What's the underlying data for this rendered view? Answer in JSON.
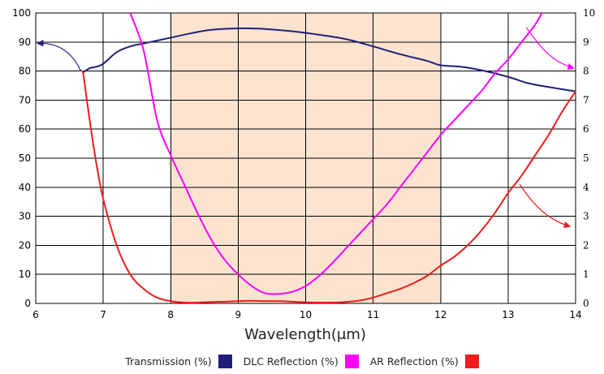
{
  "chart_data": {
    "type": "line",
    "title": "",
    "xlabel": "Wavelength(μm)",
    "ylabel": "",
    "xlim": [
      6,
      14
    ],
    "ylim": [
      0,
      100
    ],
    "y2lim": [
      0,
      10
    ],
    "x_ticks": [
      "6",
      "7",
      "8",
      "9",
      "10",
      "11",
      "12",
      "13",
      "14"
    ],
    "y_ticks_left": [
      "0",
      "10",
      "20",
      "30",
      "40",
      "50",
      "60",
      "70",
      "80",
      "90",
      "100"
    ],
    "y_ticks_right": [
      "0",
      "1",
      "2",
      "3",
      "4",
      "5",
      "6",
      "7",
      "8",
      "9",
      "10"
    ],
    "grid": true,
    "shaded_band": {
      "x_from": 8,
      "x_to": 12,
      "color": "#fbe3cf"
    },
    "legend_position": "bottom",
    "series": [
      {
        "name": "Transmission (%)",
        "axis": "left",
        "color": "#1f1f7a",
        "x": [
          6.7,
          6.8,
          6.9,
          7.0,
          7.2,
          7.4,
          7.6,
          7.8,
          8.0,
          8.3,
          8.6,
          9.0,
          9.4,
          9.8,
          10.2,
          10.6,
          11.0,
          11.4,
          11.8,
          12.0,
          12.3,
          12.6,
          13.0,
          13.3,
          13.6,
          14.0
        ],
        "values": [
          79.5,
          81.0,
          81.5,
          82.5,
          86.5,
          88.5,
          89.5,
          90.5,
          91.5,
          93.0,
          94.2,
          94.7,
          94.5,
          93.7,
          92.5,
          91.0,
          88.5,
          85.8,
          83.5,
          82.0,
          81.5,
          80.3,
          78.0,
          75.8,
          74.5,
          73.0
        ]
      },
      {
        "name": "DLC Reflection (%)",
        "axis": "right",
        "color": "#ff00ff",
        "x": [
          7.4,
          7.6,
          7.8,
          8.0,
          8.2,
          8.4,
          8.6,
          8.8,
          9.0,
          9.2,
          9.4,
          9.6,
          9.8,
          10.0,
          10.2,
          10.4,
          10.6,
          10.8,
          11.0,
          11.2,
          11.4,
          11.6,
          11.8,
          12.0,
          12.2,
          12.4,
          12.6,
          12.8,
          13.0,
          13.2,
          13.4,
          13.5
        ],
        "values": [
          10.0,
          8.7,
          6.3,
          5.1,
          4.1,
          3.1,
          2.2,
          1.5,
          1.0,
          0.6,
          0.35,
          0.33,
          0.4,
          0.6,
          0.95,
          1.4,
          1.9,
          2.4,
          2.9,
          3.4,
          4.0,
          4.6,
          5.2,
          5.8,
          6.3,
          6.8,
          7.3,
          7.9,
          8.4,
          9.0,
          9.6,
          10.0
        ]
      },
      {
        "name": "AR Reflection (%)",
        "axis": "right",
        "color": "#ee1c1c",
        "x": [
          6.7,
          6.8,
          6.9,
          7.0,
          7.2,
          7.4,
          7.6,
          7.8,
          8.0,
          8.2,
          8.4,
          8.6,
          8.8,
          9.0,
          9.2,
          9.4,
          9.6,
          9.8,
          10.0,
          10.2,
          10.4,
          10.6,
          10.8,
          11.0,
          11.2,
          11.4,
          11.6,
          11.8,
          12.0,
          12.2,
          12.4,
          12.6,
          12.8,
          13.0,
          13.2,
          13.4,
          13.6,
          13.8,
          14.0
        ],
        "values": [
          8.0,
          6.3,
          4.8,
          3.6,
          2.0,
          1.0,
          0.5,
          0.2,
          0.08,
          0.03,
          0.03,
          0.05,
          0.06,
          0.08,
          0.09,
          0.08,
          0.08,
          0.06,
          0.04,
          0.03,
          0.03,
          0.05,
          0.1,
          0.2,
          0.35,
          0.5,
          0.7,
          0.95,
          1.3,
          1.6,
          2.0,
          2.5,
          3.1,
          3.8,
          4.4,
          5.1,
          5.8,
          6.6,
          7.3
        ]
      }
    ],
    "annotation_arrows": [
      {
        "target": "transmission",
        "color": "#1f1f7a"
      },
      {
        "target": "dlc",
        "color": "#ff00ff"
      },
      {
        "target": "ar",
        "color": "#ee1c1c"
      }
    ]
  },
  "legend": {
    "items": [
      {
        "label": "Transmission (%)",
        "color": "#1f1f7a"
      },
      {
        "label": "DLC Reflection (%)",
        "color": "#ff00ff"
      },
      {
        "label": "AR Reflection (%)",
        "color": "#ee1c1c"
      }
    ]
  }
}
